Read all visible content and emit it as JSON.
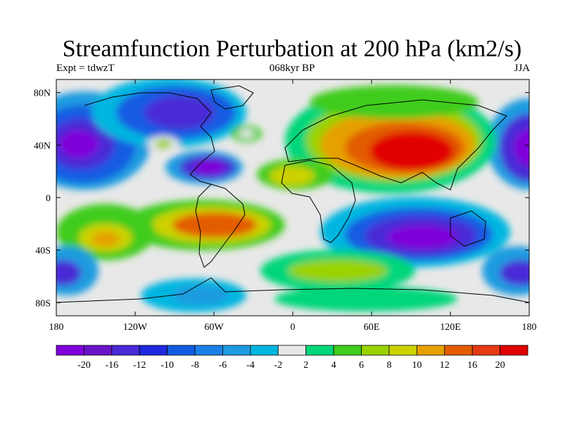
{
  "title": "Streamfunction Perturbation at 200 hPa (km2/s)",
  "experiment": "Expt = tdwzT",
  "period": "068kyr BP",
  "season": "JJA",
  "lon_ticks": [
    "180",
    "120W",
    "60W",
    "0",
    "60E",
    "120E",
    "180"
  ],
  "lat_ticks": [
    "80N",
    "40N",
    "0",
    "40S",
    "80S"
  ],
  "colorbar": {
    "labels": [
      "-20",
      "-16",
      "-12",
      "-10",
      "-8",
      "-6",
      "-4",
      "-2",
      "2",
      "4",
      "6",
      "8",
      "10",
      "12",
      "16",
      "20"
    ],
    "colors": [
      "#7f00d9",
      "#6a14c8",
      "#4a2ad6",
      "#1e2adf",
      "#125ce2",
      "#1a7fe6",
      "#1e9be0",
      "#00b6e0",
      "#e8e8e8",
      "#00d67a",
      "#40cc1a",
      "#9ad200",
      "#ccd200",
      "#e6a000",
      "#e35c00",
      "#e53a12",
      "#e00000"
    ]
  },
  "colors": {
    "background": "#e8e8e8",
    "coastline": "#000000"
  }
}
